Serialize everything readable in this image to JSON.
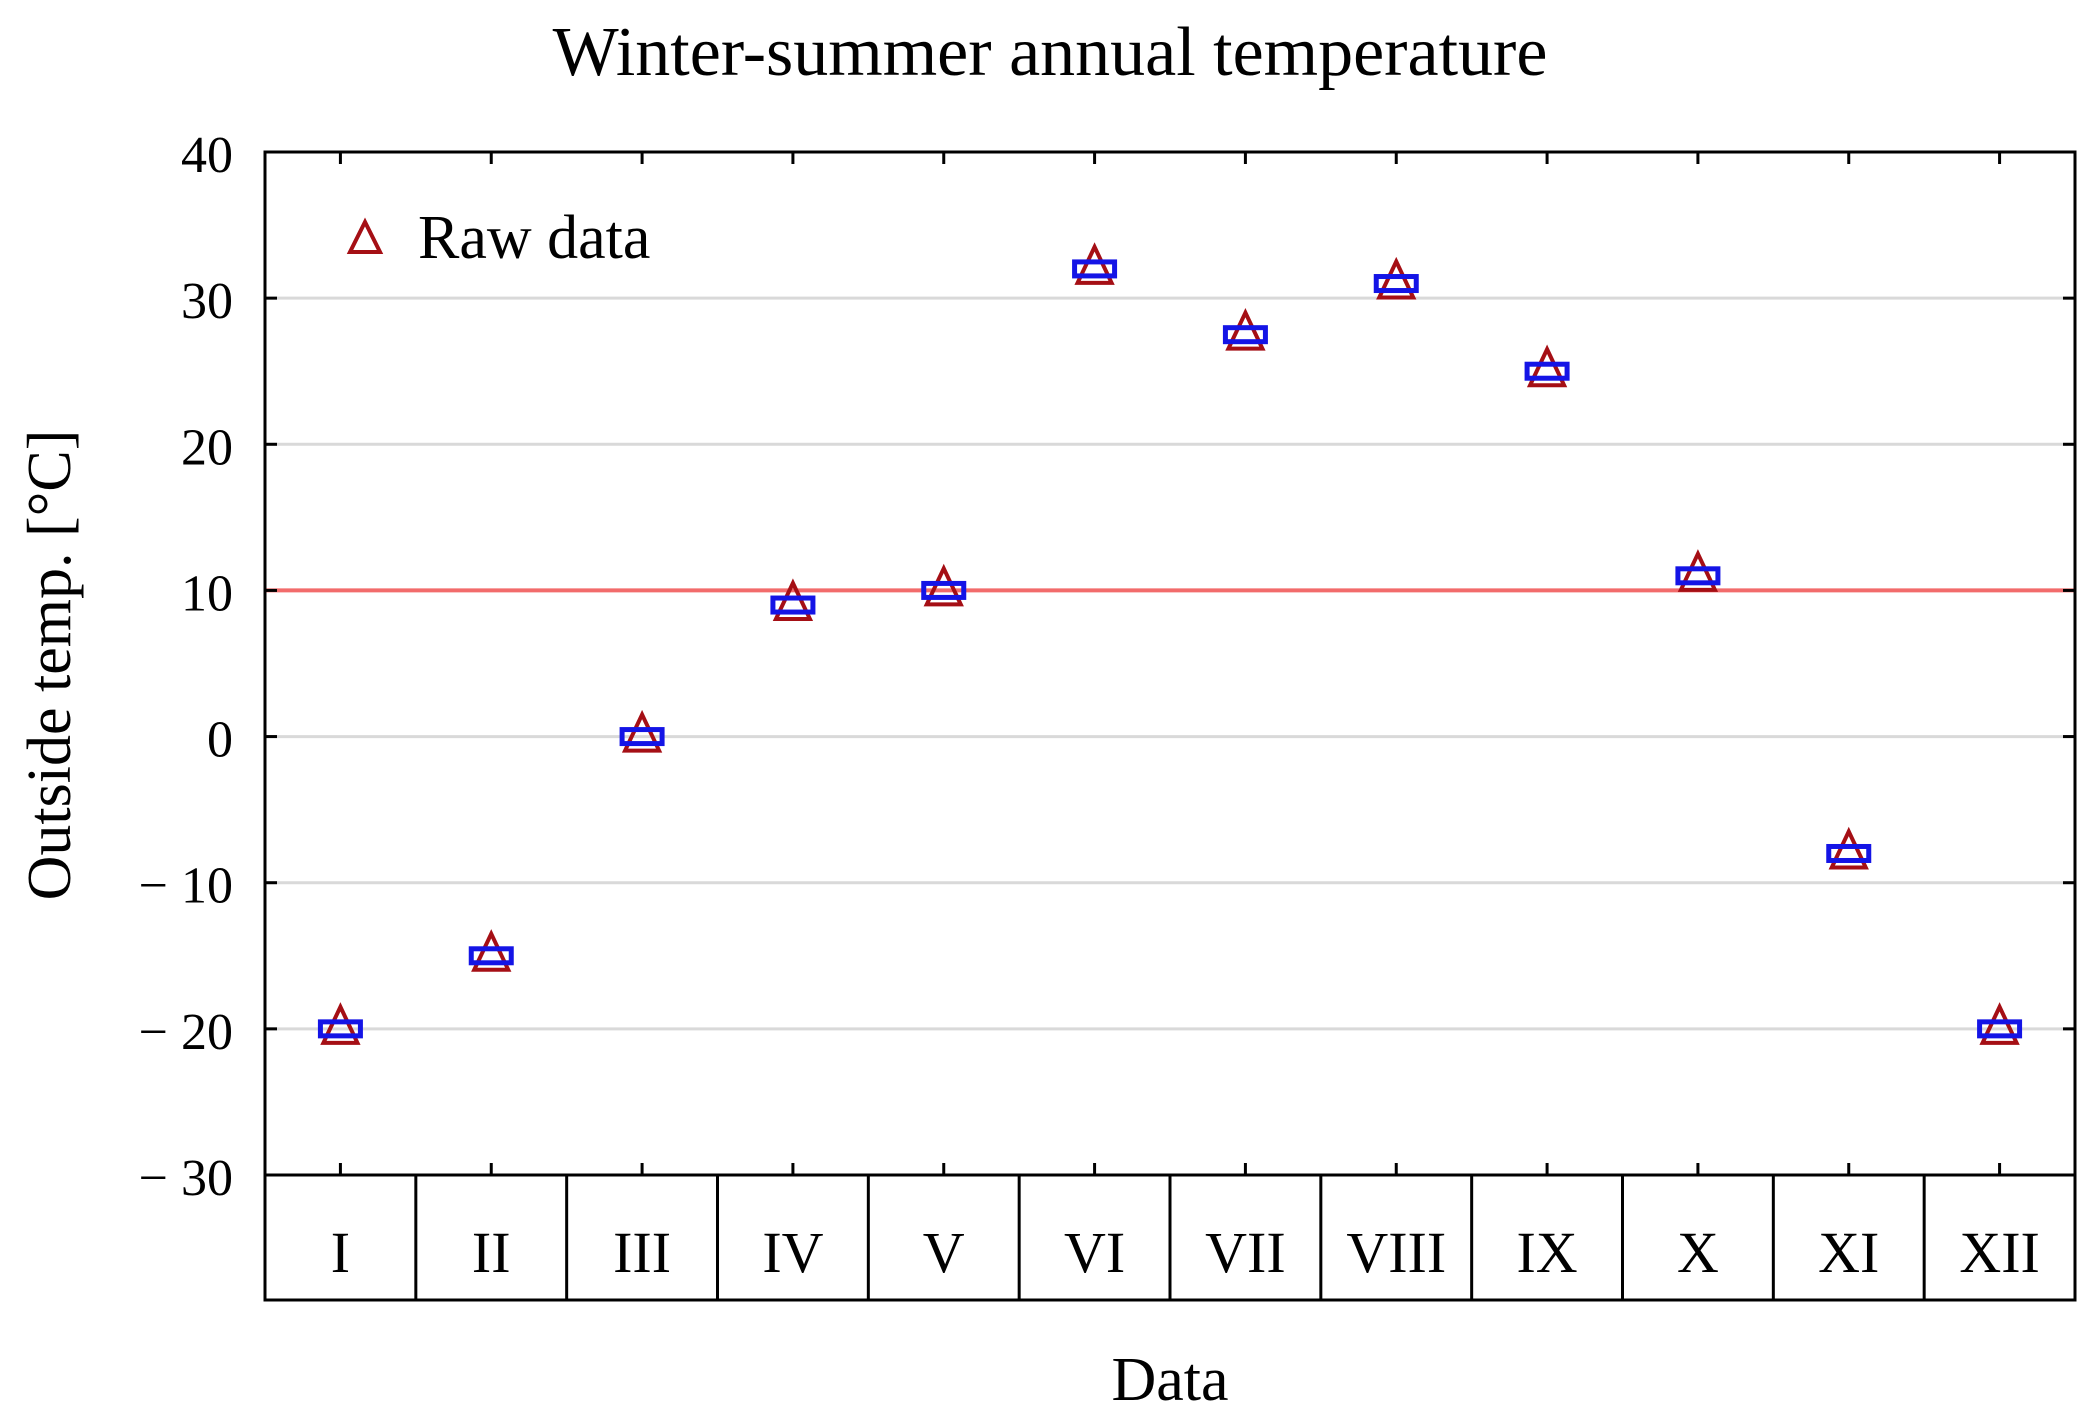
{
  "chart_data": {
    "type": "scatter",
    "title": "Winter-summer annual temperature",
    "xlabel": "Data",
    "ylabel": "Outside temp. [°C]",
    "ylim": [
      -30,
      40
    ],
    "yticks": [
      40,
      30,
      20,
      10,
      0,
      -10,
      -20,
      -30
    ],
    "ytick_labels": [
      "40",
      "30",
      "20",
      "10",
      "0",
      "− 10",
      "− 20",
      "− 30"
    ],
    "grid": "horizontal",
    "categories": [
      "I",
      "II",
      "III",
      "IV",
      "V",
      "VI",
      "VII",
      "VIII",
      "IX",
      "X",
      "XI",
      "XII"
    ],
    "series": [
      {
        "name": "Raw data",
        "marker": "triangle",
        "values": [
          -20,
          -15,
          0,
          9,
          10,
          32,
          27.5,
          31,
          25,
          11,
          -8,
          -20
        ]
      },
      {
        "name": "",
        "marker": "square",
        "values": [
          -20,
          -15,
          0,
          9,
          10,
          32,
          27.5,
          31,
          25,
          11,
          -8,
          -20
        ]
      }
    ],
    "reference_line": {
      "value": 10
    },
    "legend": {
      "placement": "top-left"
    },
    "colors": {
      "triangle": "#a50f15",
      "square": "#1414e6",
      "reference": "#f26b6b",
      "grid": "#d9d9d9"
    }
  }
}
